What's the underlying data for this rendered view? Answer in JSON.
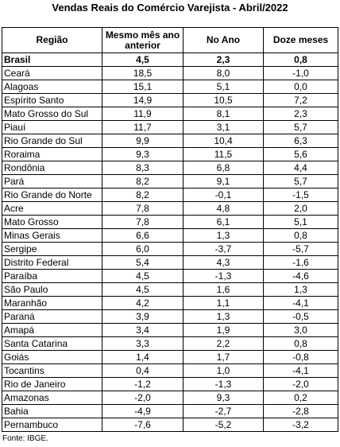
{
  "title": "Vendas Reais do Comércio Varejista - Abril/2022",
  "headers": [
    "Região",
    "Mesmo mês ano anterior",
    "No Ano",
    "Doze meses"
  ],
  "rows": [
    {
      "region": "Brasil",
      "month": "4,5",
      "year": "2,3",
      "twelve": "0,8",
      "bold": true
    },
    {
      "region": "Ceará",
      "month": "18,5",
      "year": "8,0",
      "twelve": "-1,0"
    },
    {
      "region": "Alagoas",
      "month": "15,1",
      "year": "5,1",
      "twelve": "0,0"
    },
    {
      "region": "Espírito Santo",
      "month": "14,9",
      "year": "10,5",
      "twelve": "7,2"
    },
    {
      "region": "Mato Grosso do Sul",
      "month": "11,9",
      "year": "8,1",
      "twelve": "2,3"
    },
    {
      "region": "Piauí",
      "month": "11,7",
      "year": "3,1",
      "twelve": "5,7"
    },
    {
      "region": "Rio Grande do Sul",
      "month": "9,9",
      "year": "10,4",
      "twelve": "6,3"
    },
    {
      "region": "Roraima",
      "month": "9,3",
      "year": "11,5",
      "twelve": "5,6"
    },
    {
      "region": "Rondônia",
      "month": "8,3",
      "year": "6,8",
      "twelve": "4,4"
    },
    {
      "region": "Pará",
      "month": "8,2",
      "year": "9,1",
      "twelve": "5,7"
    },
    {
      "region": "Rio Grande do Norte",
      "month": "8,2",
      "year": "-0,1",
      "twelve": "-1,5"
    },
    {
      "region": "Acre",
      "month": "7,8",
      "year": "4,8",
      "twelve": "2,0"
    },
    {
      "region": "Mato Grosso",
      "month": "7,8",
      "year": "6,1",
      "twelve": "5,1"
    },
    {
      "region": "Minas Gerais",
      "month": "6,6",
      "year": "1,3",
      "twelve": "0,8"
    },
    {
      "region": "Sergipe",
      "month": "6,0",
      "year": "-3,7",
      "twelve": "-5,7"
    },
    {
      "region": "Distrito Federal",
      "month": "5,4",
      "year": "4,3",
      "twelve": "-1,6"
    },
    {
      "region": "Paraíba",
      "month": "4,5",
      "year": "-1,3",
      "twelve": "-4,6"
    },
    {
      "region": "São Paulo",
      "month": "4,5",
      "year": "1,6",
      "twelve": "1,3"
    },
    {
      "region": "Maranhão",
      "month": "4,2",
      "year": "1,1",
      "twelve": "-4,1"
    },
    {
      "region": "Paraná",
      "month": "3,9",
      "year": "1,3",
      "twelve": "-0,5"
    },
    {
      "region": "Amapá",
      "month": "3,4",
      "year": "1,9",
      "twelve": "3,0"
    },
    {
      "region": "Santa Catarina",
      "month": "3,3",
      "year": "2,2",
      "twelve": "0,8"
    },
    {
      "region": "Goiás",
      "month": "1,4",
      "year": "1,7",
      "twelve": "-0,8"
    },
    {
      "region": "Tocantins",
      "month": "0,4",
      "year": "1,0",
      "twelve": "-4,1"
    },
    {
      "region": "Rio de Janeiro",
      "month": "-1,2",
      "year": "-1,3",
      "twelve": "-2,0"
    },
    {
      "region": "Amazonas",
      "month": "-2,0",
      "year": "9,3",
      "twelve": "0,2"
    },
    {
      "region": "Bahia",
      "month": "-4,9",
      "year": "-2,7",
      "twelve": "-2,8"
    },
    {
      "region": "Pernambuco",
      "month": "-7,6",
      "year": "-5,2",
      "twelve": "-3,2"
    }
  ],
  "source": "Fonte: IBGE."
}
